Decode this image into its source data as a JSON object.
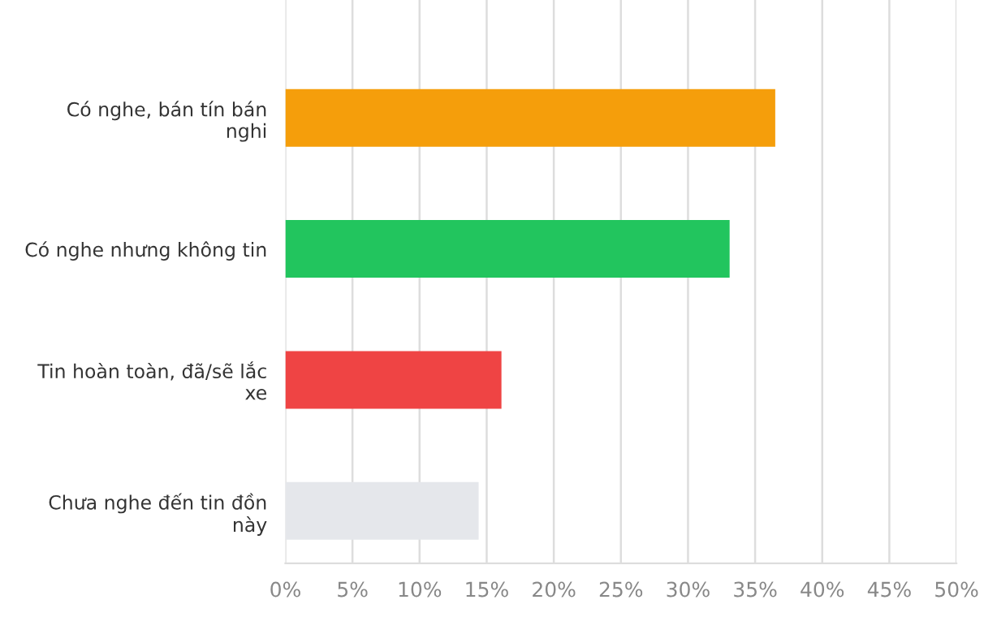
{
  "chart_data": {
    "type": "bar",
    "orientation": "horizontal",
    "categories": [
      "Có nghe, bán tín bán\nnghi",
      "Có nghe nhưng không tin",
      "Tin hoàn toàn, đã/sẽ lắc\nxe",
      "Chưa nghe đến tin đồn\nnày"
    ],
    "values": [
      36.5,
      33.1,
      16.1,
      14.4
    ],
    "colors": [
      "#f59e0b",
      "#22c55e",
      "#ef4444",
      "#e5e7eb"
    ],
    "xlim": [
      0,
      50
    ],
    "xticks": [
      {
        "value": 0,
        "label": "0%"
      },
      {
        "value": 5,
        "label": "5%"
      },
      {
        "value": 10,
        "label": "10%"
      },
      {
        "value": 15,
        "label": "15%"
      },
      {
        "value": 20,
        "label": "20%"
      },
      {
        "value": 25,
        "label": "25%"
      },
      {
        "value": 30,
        "label": "30%"
      },
      {
        "value": 35,
        "label": "35%"
      },
      {
        "value": 40,
        "label": "40%"
      },
      {
        "value": 45,
        "label": "45%"
      },
      {
        "value": 50,
        "label": "50%"
      }
    ],
    "grid": "x",
    "legend": false
  }
}
